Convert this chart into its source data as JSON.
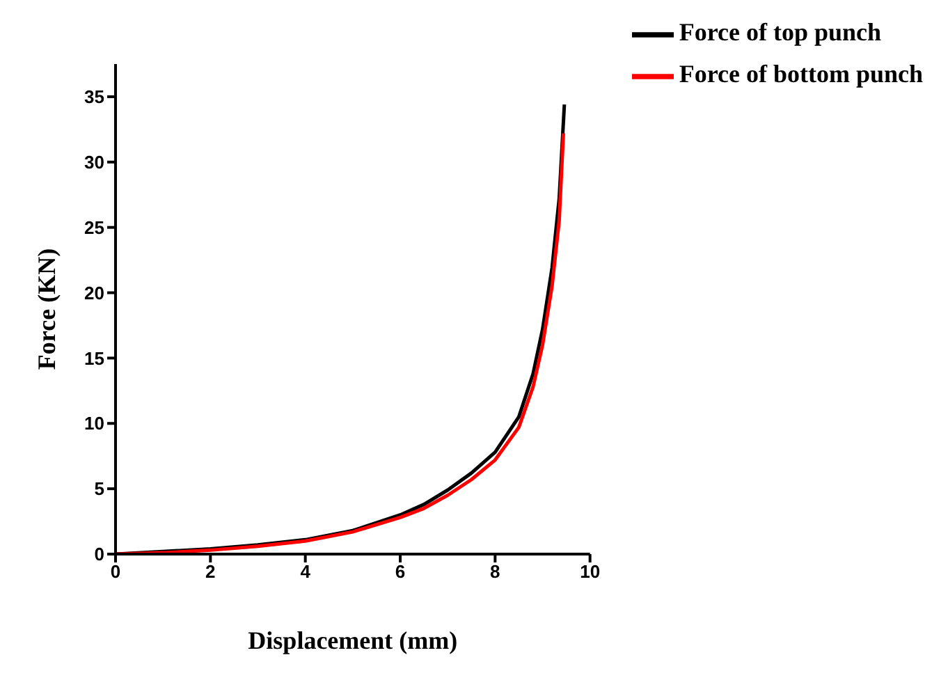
{
  "chart_data": {
    "type": "line",
    "xlabel": "Displacement (mm)",
    "ylabel": "Force (KN)",
    "xlim": [
      0,
      10
    ],
    "xticks": [
      0,
      2,
      4,
      6,
      8,
      10
    ],
    "ylim": [
      0,
      37.5
    ],
    "yticks": [
      0,
      5,
      10,
      15,
      20,
      25,
      30,
      35
    ],
    "grid": false,
    "legend": "top right",
    "marker": "none",
    "line_style": "solid",
    "series": [
      {
        "name": "Force of top punch",
        "color": "#000000",
        "x": [
          0,
          1,
          2,
          3,
          4,
          5,
          6,
          6.5,
          7,
          7.5,
          8,
          8.5,
          8.8,
          9,
          9.2,
          9.35,
          9.46
        ],
        "values": [
          0,
          0.2,
          0.4,
          0.7,
          1.1,
          1.8,
          3.0,
          3.8,
          4.9,
          6.2,
          7.8,
          10.5,
          13.8,
          17.2,
          21.9,
          27.2,
          34.4
        ]
      },
      {
        "name": "Force of bottom punch",
        "color": "#ff0000",
        "x": [
          0,
          1,
          2,
          3,
          4,
          5,
          6,
          6.5,
          7,
          7.5,
          8,
          8.5,
          8.8,
          9,
          9.2,
          9.35,
          9.44
        ],
        "values": [
          0,
          0.1,
          0.3,
          0.6,
          1.0,
          1.7,
          2.8,
          3.5,
          4.5,
          5.7,
          7.2,
          9.7,
          12.8,
          16.0,
          20.5,
          25.5,
          32.2
        ]
      }
    ]
  }
}
